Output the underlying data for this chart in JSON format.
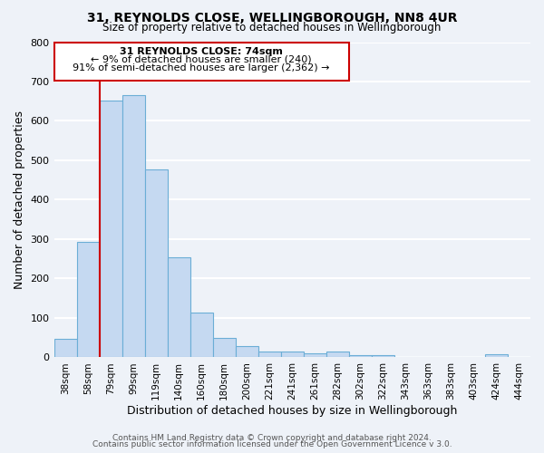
{
  "title": "31, REYNOLDS CLOSE, WELLINGBOROUGH, NN8 4UR",
  "subtitle": "Size of property relative to detached houses in Wellingborough",
  "xlabel": "Distribution of detached houses by size in Wellingborough",
  "ylabel": "Number of detached properties",
  "bin_labels": [
    "38sqm",
    "58sqm",
    "79sqm",
    "99sqm",
    "119sqm",
    "140sqm",
    "160sqm",
    "180sqm",
    "200sqm",
    "221sqm",
    "241sqm",
    "261sqm",
    "282sqm",
    "302sqm",
    "322sqm",
    "343sqm",
    "363sqm",
    "383sqm",
    "403sqm",
    "424sqm",
    "444sqm"
  ],
  "bar_values": [
    48,
    293,
    651,
    665,
    478,
    253,
    113,
    49,
    28,
    15,
    15,
    10,
    15,
    5,
    5,
    1,
    1,
    1,
    1,
    8,
    1
  ],
  "bar_color": "#c5d9f1",
  "bar_edge_color": "#6baed6",
  "marker_color": "#cc0000",
  "annotation_title": "31 REYNOLDS CLOSE: 74sqm",
  "annotation_line1": "← 9% of detached houses are smaller (240)",
  "annotation_line2": "91% of semi-detached houses are larger (2,362) →",
  "annotation_box_color": "#cc0000",
  "ylim": [
    0,
    800
  ],
  "yticks": [
    0,
    100,
    200,
    300,
    400,
    500,
    600,
    700,
    800
  ],
  "footer1": "Contains HM Land Registry data © Crown copyright and database right 2024.",
  "footer2": "Contains public sector information licensed under the Open Government Licence v 3.0.",
  "background_color": "#eef2f8",
  "grid_color": "#ffffff"
}
